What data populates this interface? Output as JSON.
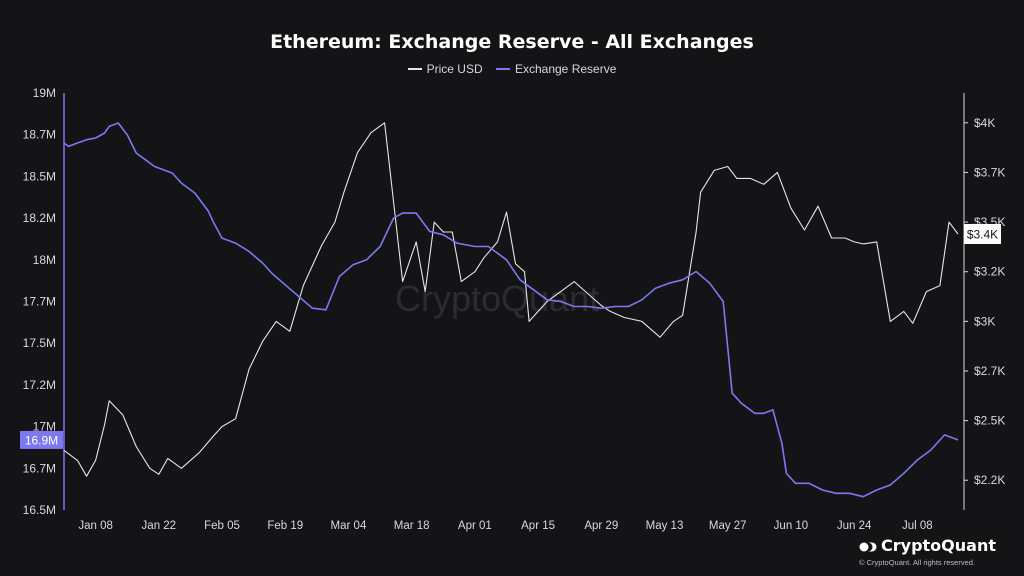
{
  "chart_data": {
    "type": "line",
    "title": "Ethereum: Exchange Reserve - All Exchanges",
    "xlabel": "",
    "ylabel": "",
    "x_tick_labels": [
      "Jan 08",
      "Jan 22",
      "Feb 05",
      "Feb 19",
      "Mar 04",
      "Mar 18",
      "Apr 01",
      "Apr 15",
      "Apr 29",
      "May 13",
      "May 27",
      "Jun 10",
      "Jun 24",
      "Jul 08"
    ],
    "left_axis": {
      "tick_labels": [
        "16.5M",
        "16.7M",
        "17M",
        "17.2M",
        "17.5M",
        "17.7M",
        "18M",
        "18.2M",
        "18.5M",
        "18.7M",
        "19M"
      ],
      "ylim": [
        16500000,
        19000000
      ],
      "current_value_label": "16.9M"
    },
    "right_axis": {
      "tick_labels": [
        "$2.2K",
        "$2.5K",
        "$2.7K",
        "$3K",
        "$3.2K",
        "$3.5K",
        "$3.7K",
        "$4K"
      ],
      "tick_values": [
        2200,
        2500,
        2750,
        3000,
        3250,
        3500,
        3750,
        4000
      ],
      "ylim": [
        2050,
        4150
      ],
      "current_value_label": "$3.4K"
    },
    "grid": false,
    "legend_placement": "top-center",
    "series": [
      {
        "name": "Price USD",
        "axis": "right",
        "color": "#e6e6ea",
        "x": [
          "2024-01-01",
          "2024-01-04",
          "2024-01-06",
          "2024-01-08",
          "2024-01-10",
          "2024-01-11",
          "2024-01-14",
          "2024-01-17",
          "2024-01-20",
          "2024-01-22",
          "2024-01-24",
          "2024-01-27",
          "2024-01-31",
          "2024-02-03",
          "2024-02-05",
          "2024-02-08",
          "2024-02-11",
          "2024-02-14",
          "2024-02-17",
          "2024-02-20",
          "2024-02-23",
          "2024-02-27",
          "2024-03-01",
          "2024-03-03",
          "2024-03-06",
          "2024-03-09",
          "2024-03-12",
          "2024-03-14",
          "2024-03-16",
          "2024-03-19",
          "2024-03-21",
          "2024-03-23",
          "2024-03-25",
          "2024-03-27",
          "2024-03-29",
          "2024-04-01",
          "2024-04-03",
          "2024-04-06",
          "2024-04-08",
          "2024-04-10",
          "2024-04-12",
          "2024-04-13",
          "2024-04-17",
          "2024-04-20",
          "2024-04-23",
          "2024-04-26",
          "2024-04-29",
          "2024-05-01",
          "2024-05-04",
          "2024-05-08",
          "2024-05-12",
          "2024-05-15",
          "2024-05-17",
          "2024-05-20",
          "2024-05-21",
          "2024-05-24",
          "2024-05-27",
          "2024-05-29",
          "2024-06-01",
          "2024-06-04",
          "2024-06-07",
          "2024-06-10",
          "2024-06-13",
          "2024-06-16",
          "2024-06-19",
          "2024-06-22",
          "2024-06-24",
          "2024-06-26",
          "2024-06-29",
          "2024-07-02",
          "2024-07-05",
          "2024-07-07",
          "2024-07-10",
          "2024-07-13",
          "2024-07-15",
          "2024-07-17"
        ],
        "values": [
          2350,
          2300,
          2220,
          2300,
          2480,
          2600,
          2530,
          2370,
          2260,
          2230,
          2310,
          2260,
          2340,
          2420,
          2470,
          2510,
          2760,
          2900,
          3000,
          2950,
          3180,
          3380,
          3500,
          3650,
          3850,
          3950,
          4000,
          3600,
          3200,
          3400,
          3150,
          3500,
          3450,
          3450,
          3200,
          3250,
          3320,
          3400,
          3550,
          3290,
          3250,
          3000,
          3100,
          3150,
          3200,
          3140,
          3080,
          3050,
          3020,
          3000,
          2920,
          3000,
          3030,
          3450,
          3650,
          3760,
          3780,
          3720,
          3720,
          3690,
          3750,
          3570,
          3460,
          3580,
          3420,
          3420,
          3400,
          3390,
          3400,
          3000,
          3050,
          2990,
          3150,
          3180,
          3500,
          3440
        ]
      },
      {
        "name": "Exchange Reserve",
        "axis": "left",
        "color": "#7b78f0",
        "x": [
          "2024-01-01",
          "2024-01-02",
          "2024-01-04",
          "2024-01-06",
          "2024-01-08",
          "2024-01-10",
          "2024-01-11",
          "2024-01-13",
          "2024-01-15",
          "2024-01-17",
          "2024-01-19",
          "2024-01-21",
          "2024-01-23",
          "2024-01-25",
          "2024-01-27",
          "2024-01-30",
          "2024-02-02",
          "2024-02-03",
          "2024-02-05",
          "2024-02-08",
          "2024-02-11",
          "2024-02-14",
          "2024-02-16",
          "2024-02-19",
          "2024-02-22",
          "2024-02-25",
          "2024-02-28",
          "2024-03-02",
          "2024-03-05",
          "2024-03-08",
          "2024-03-11",
          "2024-03-14",
          "2024-03-16",
          "2024-03-19",
          "2024-03-22",
          "2024-03-25",
          "2024-03-28",
          "2024-04-01",
          "2024-04-04",
          "2024-04-08",
          "2024-04-11",
          "2024-04-14",
          "2024-04-17",
          "2024-04-20",
          "2024-04-23",
          "2024-04-26",
          "2024-04-29",
          "2024-05-02",
          "2024-05-05",
          "2024-05-08",
          "2024-05-11",
          "2024-05-14",
          "2024-05-17",
          "2024-05-20",
          "2024-05-23",
          "2024-05-26",
          "2024-05-28",
          "2024-05-30",
          "2024-06-02",
          "2024-06-04",
          "2024-06-06",
          "2024-06-08",
          "2024-06-09",
          "2024-06-11",
          "2024-06-14",
          "2024-06-17",
          "2024-06-20",
          "2024-06-23",
          "2024-06-26",
          "2024-06-29",
          "2024-07-02",
          "2024-07-05",
          "2024-07-08",
          "2024-07-11",
          "2024-07-14",
          "2024-07-16",
          "2024-07-17"
        ],
        "values": [
          18700000,
          18680000,
          18700000,
          18720000,
          18730000,
          18760000,
          18800000,
          18820000,
          18750000,
          18640000,
          18600000,
          18560000,
          18540000,
          18520000,
          18460000,
          18400000,
          18290000,
          18230000,
          18130000,
          18100000,
          18050000,
          17980000,
          17920000,
          17850000,
          17780000,
          17710000,
          17700000,
          17900000,
          17970000,
          18000000,
          18080000,
          18250000,
          18280000,
          18280000,
          18170000,
          18150000,
          18100000,
          18080000,
          18080000,
          18000000,
          17880000,
          17820000,
          17760000,
          17750000,
          17720000,
          17720000,
          17710000,
          17720000,
          17720000,
          17760000,
          17830000,
          17860000,
          17880000,
          17930000,
          17860000,
          17750000,
          17200000,
          17140000,
          17080000,
          17080000,
          17100000,
          16900000,
          16720000,
          16660000,
          16660000,
          16620000,
          16600000,
          16600000,
          16580000,
          16620000,
          16650000,
          16720000,
          16800000,
          16860000,
          16950000,
          16930000,
          16920000
        ]
      }
    ]
  },
  "legend": {
    "price_label": "Price USD",
    "reserve_label": "Exchange Reserve"
  },
  "watermark": "CryptoQuant",
  "brand": {
    "name": "CryptoQuant",
    "copyright": "© CryptoQuant. All rights reserved."
  }
}
